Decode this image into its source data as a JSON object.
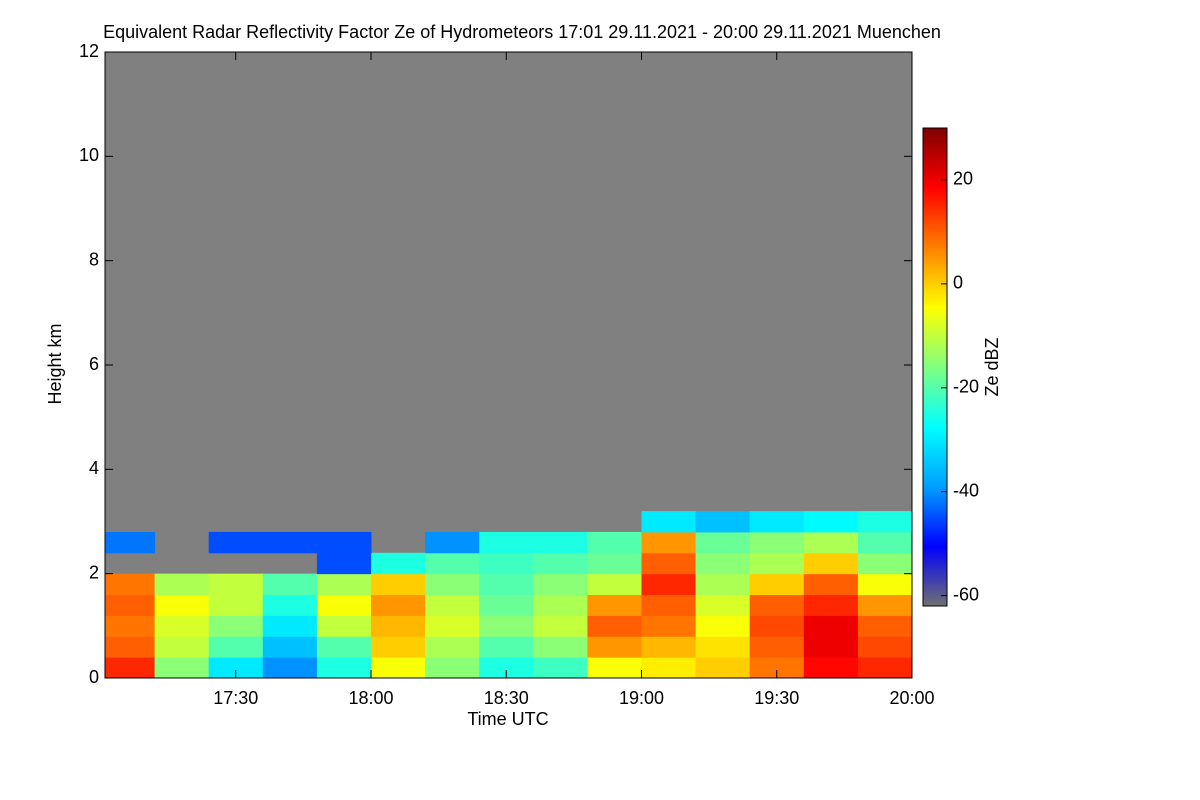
{
  "chart_data": {
    "type": "heatmap",
    "title": "Equivalent Radar Reflectivity Factor Ze of Hydrometeors   17:01 29.11.2021 - 20:00 29.11.2021 Muenchen",
    "x_label": "Time UTC",
    "y_label": "Height km",
    "colorbar_label": "Ze dBZ",
    "x": [
      17.1,
      17.3,
      17.5,
      17.7,
      17.9,
      18.1,
      18.3,
      18.5,
      18.7,
      18.9,
      19.1,
      19.3,
      19.5,
      19.7,
      19.9
    ],
    "y": [
      0.2,
      0.6,
      1.0,
      1.4,
      1.8,
      2.2,
      2.6,
      3.0
    ],
    "z": [
      [
        15,
        -15,
        -30,
        -40,
        -25,
        -5,
        -15,
        -25,
        -22,
        -5,
        -3,
        0,
        8,
        18,
        15
      ],
      [
        10,
        -10,
        -20,
        -35,
        -20,
        0,
        -12,
        -20,
        -15,
        5,
        2,
        -2,
        10,
        20,
        12
      ],
      [
        8,
        -8,
        -15,
        -30,
        -10,
        2,
        -8,
        -15,
        -10,
        10,
        8,
        -5,
        12,
        20,
        10
      ],
      [
        10,
        -5,
        -10,
        -25,
        -5,
        5,
        -10,
        -18,
        -12,
        5,
        10,
        -8,
        10,
        15,
        5
      ],
      [
        8,
        -12,
        -10,
        -20,
        -12,
        0,
        -15,
        -20,
        -15,
        -10,
        15,
        -12,
        0,
        10,
        -5
      ],
      [
        null,
        null,
        null,
        null,
        -45,
        -25,
        -20,
        -22,
        -20,
        -18,
        10,
        -15,
        -12,
        0,
        -15
      ],
      [
        -42,
        null,
        -45,
        -45,
        -45,
        null,
        -40,
        -25,
        -25,
        -20,
        5,
        -18,
        -15,
        -12,
        -20
      ],
      [
        null,
        null,
        null,
        null,
        null,
        null,
        null,
        null,
        null,
        null,
        -30,
        -35,
        -30,
        -28,
        -25
      ]
    ],
    "xlim": [
      17.0167,
      20.0
    ],
    "xticks": [
      {
        "value": 17.5,
        "label": "17:30"
      },
      {
        "value": 18.0,
        "label": "18:00"
      },
      {
        "value": 18.5,
        "label": "18:30"
      },
      {
        "value": 19.0,
        "label": "19:00"
      },
      {
        "value": 19.5,
        "label": "19:30"
      },
      {
        "value": 20.0,
        "label": "20:00"
      }
    ],
    "ylim": [
      0,
      12
    ],
    "yticks": [
      0,
      2,
      4,
      6,
      8,
      10,
      12
    ],
    "zlim": [
      -62,
      30
    ],
    "zticks": [
      -60,
      -40,
      -20,
      0,
      20
    ],
    "colormap": [
      "#707070",
      "#0000ff",
      "#00a0ff",
      "#00ffff",
      "#80ff80",
      "#ffff00",
      "#ff8000",
      "#ff0000",
      "#800000"
    ],
    "nodata_color": "#808080"
  }
}
